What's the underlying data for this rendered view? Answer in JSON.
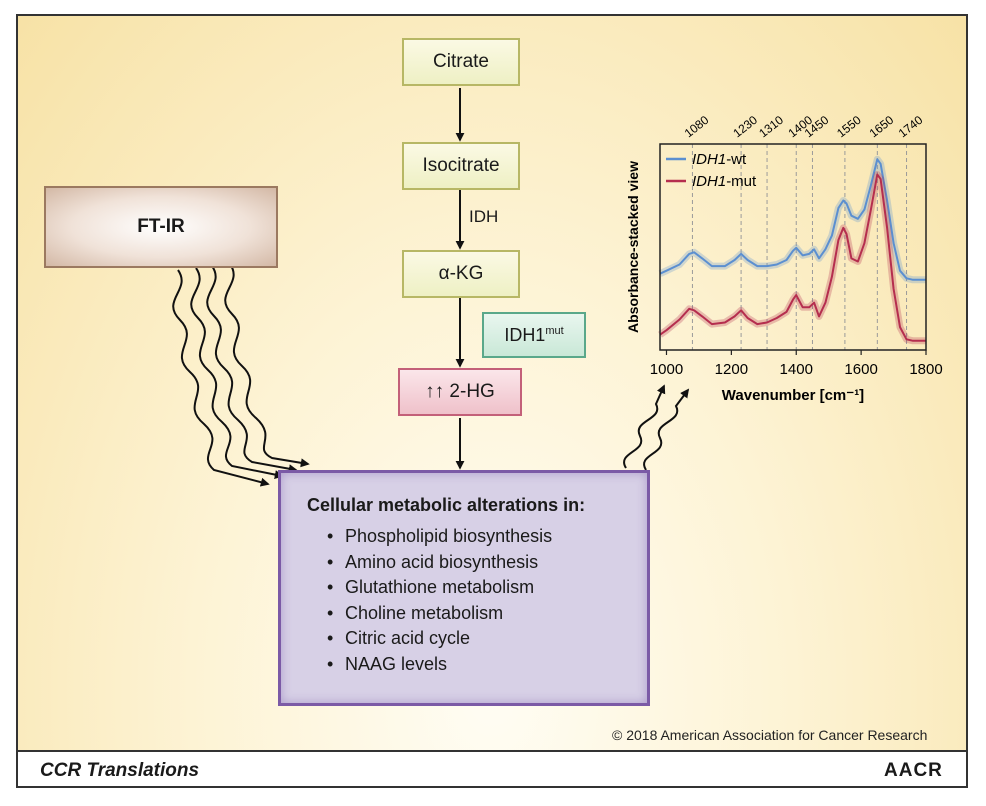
{
  "flow": {
    "citrate": "Citrate",
    "isocitrate": "Isocitrate",
    "idh_label": "IDH",
    "akg": "α-KG",
    "idh1mut_base": "IDH1",
    "idh1mut_sup": "mut",
    "twohg": "↑↑ 2-HG"
  },
  "ftir": {
    "label": "FT-IR"
  },
  "cellular": {
    "title": "Cellular metabolic alterations in:",
    "items": [
      "Phospholipid biosynthesis",
      "Amino acid biosynthesis",
      "Glutathione metabolism",
      "Choline metabolism",
      "Citric acid cycle",
      "NAAG levels"
    ]
  },
  "chart_data": {
    "type": "line",
    "ylabel": "Absorbance-stacked view",
    "xlabel": "Wavenumber [cm⁻¹]",
    "xlim": [
      980,
      1800
    ],
    "x_ticks": [
      1000,
      1200,
      1400,
      1600,
      1800
    ],
    "marker_lines": [
      1080,
      1230,
      1310,
      1400,
      1450,
      1550,
      1650,
      1740
    ],
    "legend_position": "top-left",
    "series": [
      {
        "name_italic": "IDH1",
        "name_suffix": "-wt",
        "color": "#5b8fd0",
        "x": [
          980,
          1000,
          1040,
          1070,
          1085,
          1110,
          1140,
          1180,
          1210,
          1230,
          1250,
          1280,
          1310,
          1340,
          1370,
          1390,
          1400,
          1420,
          1440,
          1455,
          1470,
          1490,
          1510,
          1530,
          1545,
          1555,
          1570,
          1590,
          1610,
          1630,
          1650,
          1660,
          1680,
          1700,
          1720,
          1740,
          1760,
          1800
        ],
        "y": [
          0.5,
          0.52,
          0.56,
          0.63,
          0.64,
          0.6,
          0.55,
          0.55,
          0.59,
          0.63,
          0.59,
          0.55,
          0.55,
          0.56,
          0.59,
          0.65,
          0.67,
          0.62,
          0.63,
          0.66,
          0.6,
          0.66,
          0.75,
          0.93,
          0.98,
          0.96,
          0.88,
          0.86,
          0.92,
          1.08,
          1.25,
          1.22,
          0.98,
          0.7,
          0.52,
          0.47,
          0.46,
          0.46
        ]
      },
      {
        "name_italic": "IDH1",
        "name_suffix": "-mut",
        "color": "#b52e4e",
        "x": [
          980,
          1000,
          1040,
          1070,
          1085,
          1110,
          1140,
          1180,
          1210,
          1230,
          1250,
          1280,
          1310,
          1340,
          1370,
          1390,
          1400,
          1420,
          1440,
          1455,
          1470,
          1490,
          1510,
          1530,
          1545,
          1555,
          1570,
          1590,
          1610,
          1630,
          1650,
          1660,
          1680,
          1700,
          1720,
          1740,
          1760,
          1800
        ],
        "y": [
          0.1,
          0.13,
          0.2,
          0.27,
          0.26,
          0.22,
          0.17,
          0.18,
          0.22,
          0.26,
          0.21,
          0.17,
          0.18,
          0.21,
          0.25,
          0.33,
          0.36,
          0.28,
          0.28,
          0.31,
          0.22,
          0.31,
          0.48,
          0.72,
          0.8,
          0.76,
          0.6,
          0.58,
          0.7,
          0.92,
          1.15,
          1.12,
          0.8,
          0.4,
          0.15,
          0.07,
          0.06,
          0.06
        ]
      }
    ]
  },
  "copyright": "© 2018 American Association for Cancer Research",
  "footer": {
    "left": "CCR Translations",
    "right": "AACR"
  }
}
